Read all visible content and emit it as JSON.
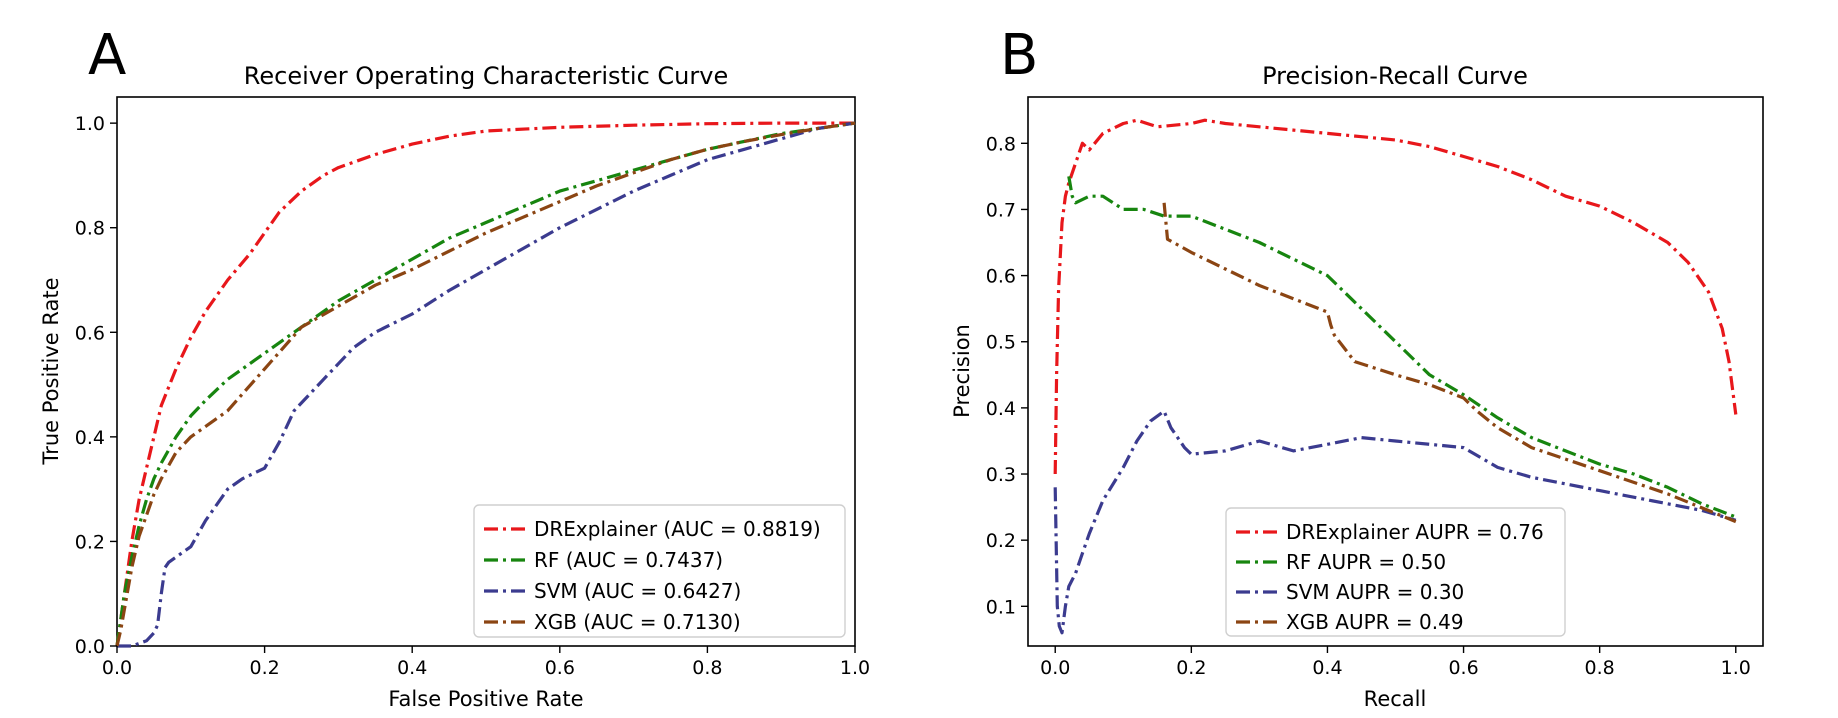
{
  "chart_data": [
    {
      "type": "line",
      "panel_label": "A",
      "title": "Receiver Operating Characteristic Curve",
      "xlabel": "False Positive Rate",
      "ylabel": "True Positive Rate",
      "xlim": [
        0.0,
        1.0
      ],
      "ylim": [
        0.0,
        1.05
      ],
      "xticks": [
        0.0,
        0.2,
        0.4,
        0.6,
        0.8,
        1.0
      ],
      "yticks": [
        0.0,
        0.2,
        0.4,
        0.6,
        0.8,
        1.0
      ],
      "xtick_labels": [
        "0.0",
        "0.2",
        "0.4",
        "0.6",
        "0.8",
        "1.0"
      ],
      "ytick_labels": [
        "0.0",
        "0.2",
        "0.4",
        "0.6",
        "0.8",
        "1.0"
      ],
      "legend_position": "lower-right",
      "series": [
        {
          "name": "DRExplainer (AUC = 0.8819)",
          "color": "#e8171b",
          "x": [
            0.0,
            0.005,
            0.01,
            0.02,
            0.03,
            0.04,
            0.05,
            0.06,
            0.08,
            0.1,
            0.12,
            0.15,
            0.18,
            0.2,
            0.22,
            0.25,
            0.28,
            0.3,
            0.35,
            0.4,
            0.45,
            0.5,
            0.6,
            0.7,
            0.8,
            0.9,
            1.0
          ],
          "y": [
            0.0,
            0.05,
            0.1,
            0.2,
            0.28,
            0.34,
            0.4,
            0.46,
            0.53,
            0.59,
            0.64,
            0.7,
            0.75,
            0.79,
            0.83,
            0.87,
            0.9,
            0.915,
            0.94,
            0.96,
            0.975,
            0.985,
            0.992,
            0.996,
            0.999,
            1.0,
            1.0
          ]
        },
        {
          "name": "RF (AUC = 0.7437)",
          "color": "#17850f",
          "x": [
            0.0,
            0.005,
            0.01,
            0.02,
            0.03,
            0.04,
            0.05,
            0.06,
            0.08,
            0.1,
            0.12,
            0.15,
            0.18,
            0.2,
            0.25,
            0.3,
            0.35,
            0.4,
            0.45,
            0.5,
            0.55,
            0.6,
            0.65,
            0.7,
            0.75,
            0.8,
            0.85,
            0.9,
            0.95,
            1.0
          ],
          "y": [
            0.0,
            0.05,
            0.1,
            0.17,
            0.23,
            0.28,
            0.32,
            0.35,
            0.4,
            0.44,
            0.47,
            0.51,
            0.54,
            0.56,
            0.61,
            0.66,
            0.7,
            0.74,
            0.78,
            0.81,
            0.84,
            0.87,
            0.89,
            0.91,
            0.93,
            0.95,
            0.965,
            0.98,
            0.99,
            1.0
          ]
        },
        {
          "name": "SVM (AUC = 0.6427)",
          "color": "#3b3b8f",
          "x": [
            0.0,
            0.02,
            0.04,
            0.05,
            0.055,
            0.06,
            0.065,
            0.07,
            0.08,
            0.1,
            0.12,
            0.15,
            0.17,
            0.2,
            0.22,
            0.24,
            0.26,
            0.28,
            0.3,
            0.32,
            0.35,
            0.4,
            0.45,
            0.5,
            0.55,
            0.6,
            0.65,
            0.7,
            0.75,
            0.8,
            0.85,
            0.9,
            0.95,
            1.0
          ],
          "y": [
            0.0,
            0.0,
            0.01,
            0.025,
            0.04,
            0.1,
            0.15,
            0.16,
            0.17,
            0.19,
            0.24,
            0.3,
            0.32,
            0.34,
            0.39,
            0.45,
            0.48,
            0.51,
            0.54,
            0.57,
            0.6,
            0.635,
            0.68,
            0.72,
            0.76,
            0.8,
            0.835,
            0.87,
            0.9,
            0.93,
            0.95,
            0.97,
            0.99,
            1.0
          ]
        },
        {
          "name": "XGB (AUC = 0.7130)",
          "color": "#8b4513",
          "x": [
            0.0,
            0.005,
            0.01,
            0.02,
            0.03,
            0.04,
            0.05,
            0.06,
            0.08,
            0.1,
            0.12,
            0.15,
            0.2,
            0.25,
            0.3,
            0.35,
            0.4,
            0.45,
            0.5,
            0.55,
            0.6,
            0.65,
            0.7,
            0.75,
            0.8,
            0.85,
            0.9,
            0.95,
            1.0
          ],
          "y": [
            0.0,
            0.03,
            0.07,
            0.15,
            0.21,
            0.25,
            0.29,
            0.32,
            0.37,
            0.4,
            0.42,
            0.45,
            0.53,
            0.61,
            0.65,
            0.69,
            0.72,
            0.755,
            0.79,
            0.82,
            0.85,
            0.88,
            0.905,
            0.93,
            0.95,
            0.965,
            0.978,
            0.99,
            1.0
          ]
        }
      ]
    },
    {
      "type": "line",
      "panel_label": "B",
      "title": "Precision-Recall Curve",
      "xlabel": "Recall",
      "ylabel": "Precision",
      "xlim": [
        -0.04,
        1.04
      ],
      "ylim": [
        0.04,
        0.87
      ],
      "xticks": [
        0.0,
        0.2,
        0.4,
        0.6,
        0.8,
        1.0
      ],
      "yticks": [
        0.1,
        0.2,
        0.3,
        0.4,
        0.5,
        0.6,
        0.7,
        0.8
      ],
      "xtick_labels": [
        "0.0",
        "0.2",
        "0.4",
        "0.6",
        "0.8",
        "1.0"
      ],
      "ytick_labels": [
        "0.1",
        "0.2",
        "0.3",
        "0.4",
        "0.5",
        "0.6",
        "0.7",
        "0.8"
      ],
      "legend_position": "lower-center",
      "series": [
        {
          "name": "DRExplainer AUPR = 0.76",
          "color": "#e8171b",
          "x": [
            0.0,
            0.002,
            0.005,
            0.01,
            0.015,
            0.02,
            0.03,
            0.04,
            0.05,
            0.07,
            0.1,
            0.12,
            0.15,
            0.2,
            0.22,
            0.25,
            0.3,
            0.35,
            0.4,
            0.45,
            0.5,
            0.55,
            0.6,
            0.65,
            0.7,
            0.75,
            0.8,
            0.85,
            0.9,
            0.93,
            0.96,
            0.98,
            0.99,
            1.0
          ],
          "y": [
            0.3,
            0.45,
            0.58,
            0.68,
            0.72,
            0.74,
            0.77,
            0.8,
            0.79,
            0.815,
            0.83,
            0.835,
            0.825,
            0.83,
            0.835,
            0.83,
            0.825,
            0.82,
            0.815,
            0.81,
            0.805,
            0.795,
            0.78,
            0.765,
            0.745,
            0.72,
            0.705,
            0.68,
            0.65,
            0.62,
            0.575,
            0.52,
            0.47,
            0.39
          ]
        },
        {
          "name": "RF AUPR = 0.50",
          "color": "#17850f",
          "x": [
            0.02,
            0.025,
            0.03,
            0.05,
            0.07,
            0.1,
            0.13,
            0.16,
            0.2,
            0.25,
            0.3,
            0.35,
            0.4,
            0.45,
            0.5,
            0.55,
            0.6,
            0.65,
            0.7,
            0.75,
            0.8,
            0.85,
            0.9,
            0.95,
            1.0
          ],
          "y": [
            0.75,
            0.72,
            0.71,
            0.72,
            0.72,
            0.7,
            0.7,
            0.69,
            0.69,
            0.67,
            0.65,
            0.625,
            0.6,
            0.55,
            0.5,
            0.45,
            0.42,
            0.385,
            0.355,
            0.335,
            0.315,
            0.3,
            0.28,
            0.255,
            0.235
          ]
        },
        {
          "name": "SVM AUPR = 0.30",
          "color": "#3b3b8f",
          "x": [
            0.0,
            0.003,
            0.006,
            0.01,
            0.015,
            0.02,
            0.03,
            0.04,
            0.05,
            0.07,
            0.1,
            0.12,
            0.14,
            0.16,
            0.17,
            0.18,
            0.19,
            0.2,
            0.25,
            0.3,
            0.35,
            0.4,
            0.45,
            0.5,
            0.55,
            0.6,
            0.65,
            0.7,
            0.75,
            0.8,
            0.85,
            0.9,
            0.95,
            1.0
          ],
          "y": [
            0.28,
            0.1,
            0.07,
            0.06,
            0.1,
            0.13,
            0.15,
            0.18,
            0.21,
            0.26,
            0.31,
            0.35,
            0.38,
            0.395,
            0.37,
            0.355,
            0.34,
            0.33,
            0.335,
            0.35,
            0.335,
            0.345,
            0.355,
            0.35,
            0.345,
            0.34,
            0.31,
            0.295,
            0.285,
            0.275,
            0.265,
            0.255,
            0.245,
            0.23
          ]
        },
        {
          "name": "XGB AUPR = 0.49",
          "color": "#8b4513",
          "x": [
            0.16,
            0.165,
            0.2,
            0.25,
            0.3,
            0.35,
            0.4,
            0.405,
            0.41,
            0.44,
            0.5,
            0.55,
            0.6,
            0.62,
            0.65,
            0.7,
            0.8,
            0.9,
            1.0
          ],
          "y": [
            0.71,
            0.655,
            0.635,
            0.61,
            0.585,
            0.565,
            0.545,
            0.525,
            0.51,
            0.47,
            0.45,
            0.435,
            0.415,
            0.395,
            0.37,
            0.34,
            0.305,
            0.27,
            0.228
          ]
        }
      ]
    }
  ]
}
